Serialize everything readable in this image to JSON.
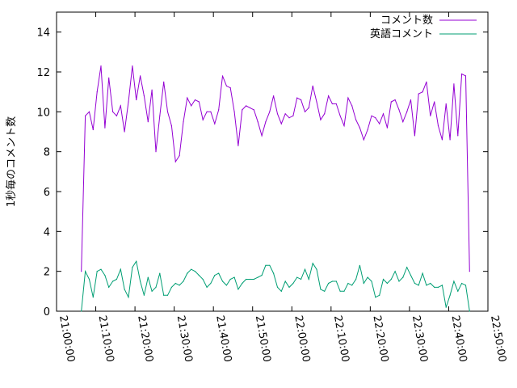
{
  "chart_data": {
    "type": "line",
    "xlabel": "",
    "ylabel": "1秒毎のコメント数",
    "xlim": [
      "21:00:00",
      "22:50:00"
    ],
    "ylim": [
      0,
      15
    ],
    "x_ticks": [
      "21:00:00",
      "21:10:00",
      "21:20:00",
      "21:30:00",
      "21:40:00",
      "21:50:00",
      "22:00:00",
      "22:10:00",
      "22:20:00",
      "22:30:00",
      "22:40:00",
      "22:50:00"
    ],
    "y_ticks": [
      "0",
      "2",
      "4",
      "6",
      "8",
      "10",
      "12",
      "14"
    ],
    "legend_position": "top-right",
    "grid": false,
    "x": [
      "21:06:20",
      "21:07:20",
      "21:08:20",
      "21:09:20",
      "21:10:20",
      "21:11:20",
      "21:12:20",
      "21:13:20",
      "21:14:20",
      "21:15:20",
      "21:16:20",
      "21:17:20",
      "21:18:20",
      "21:19:20",
      "21:20:20",
      "21:21:20",
      "21:22:20",
      "21:23:20",
      "21:24:20",
      "21:25:20",
      "21:26:20",
      "21:27:20",
      "21:28:20",
      "21:29:20",
      "21:30:20",
      "21:31:20",
      "21:32:20",
      "21:33:20",
      "21:34:20",
      "21:35:20",
      "21:36:20",
      "21:37:20",
      "21:38:20",
      "21:39:20",
      "21:40:20",
      "21:41:20",
      "21:42:20",
      "21:43:20",
      "21:44:20",
      "21:45:20",
      "21:46:20",
      "21:47:20",
      "21:48:20",
      "21:49:20",
      "21:50:20",
      "21:51:20",
      "21:52:20",
      "21:53:20",
      "21:54:20",
      "21:55:20",
      "21:56:20",
      "21:57:20",
      "21:58:20",
      "21:59:20",
      "22:00:20",
      "22:01:20",
      "22:02:20",
      "22:03:20",
      "22:04:20",
      "22:05:20",
      "22:06:20",
      "22:07:20",
      "22:08:20",
      "22:09:20",
      "22:10:20",
      "22:11:20",
      "22:12:20",
      "22:13:20",
      "22:14:20",
      "22:15:20",
      "22:16:20",
      "22:17:20",
      "22:18:20",
      "22:19:20",
      "22:20:20",
      "22:21:20",
      "22:22:20",
      "22:23:20",
      "22:24:20",
      "22:25:20",
      "22:26:20",
      "22:27:20",
      "22:28:20",
      "22:29:20",
      "22:30:20",
      "22:31:20",
      "22:32:20",
      "22:33:20",
      "22:34:20",
      "22:35:20",
      "22:36:20",
      "22:37:20",
      "22:38:20",
      "22:39:20",
      "22:40:20",
      "22:41:20",
      "22:42:20",
      "22:43:20",
      "22:44:20",
      "22:45:20"
    ],
    "series": [
      {
        "name": "コメント数",
        "color": "#9400d3",
        "values": [
          2.0,
          9.8,
          10.0,
          9.1,
          11.0,
          12.3,
          9.2,
          11.7,
          10.0,
          9.8,
          10.3,
          9.0,
          10.5,
          12.3,
          10.6,
          11.8,
          10.8,
          9.5,
          11.1,
          8.0,
          9.8,
          11.5,
          10.0,
          9.3,
          7.5,
          7.8,
          9.5,
          10.7,
          10.3,
          10.6,
          10.5,
          9.6,
          10.0,
          10.0,
          9.4,
          10.1,
          11.8,
          11.3,
          11.2,
          10.0,
          8.3,
          10.1,
          10.3,
          10.2,
          10.1,
          9.5,
          8.8,
          9.5,
          10.0,
          10.8,
          9.9,
          9.4,
          9.9,
          9.7,
          9.8,
          10.7,
          10.6,
          10.0,
          10.2,
          11.3,
          10.5,
          9.6,
          9.9,
          10.8,
          10.4,
          10.4,
          9.8,
          9.3,
          10.7,
          10.3,
          9.6,
          9.2,
          8.6,
          9.1,
          9.8,
          9.7,
          9.4,
          9.9,
          9.2,
          10.5,
          10.6,
          10.1,
          9.5,
          10.0,
          10.6,
          8.8,
          10.9,
          11.0,
          11.5,
          9.8,
          10.5,
          9.3,
          8.6,
          10.4,
          8.6,
          11.4,
          8.8,
          11.9,
          11.8,
          2.0
        ]
      },
      {
        "name": "英語コメント",
        "color": "#009e73",
        "values": [
          0.0,
          2.0,
          1.6,
          0.7,
          2.0,
          2.1,
          1.8,
          1.2,
          1.5,
          1.6,
          2.1,
          1.1,
          0.7,
          2.2,
          2.5,
          1.5,
          0.8,
          1.7,
          1.0,
          1.2,
          1.9,
          0.8,
          0.8,
          1.2,
          1.4,
          1.3,
          1.5,
          1.9,
          2.1,
          2.0,
          1.8,
          1.6,
          1.2,
          1.4,
          1.8,
          1.9,
          1.5,
          1.3,
          1.6,
          1.7,
          1.1,
          1.4,
          1.6,
          1.6,
          1.6,
          1.7,
          1.8,
          2.3,
          2.3,
          1.9,
          1.2,
          1.0,
          1.5,
          1.2,
          1.4,
          1.7,
          1.6,
          2.1,
          1.6,
          2.4,
          2.1,
          1.1,
          1.0,
          1.4,
          1.5,
          1.5,
          1.0,
          1.0,
          1.4,
          1.3,
          1.6,
          2.3,
          1.4,
          1.7,
          1.5,
          0.7,
          0.8,
          1.6,
          1.4,
          1.6,
          2.0,
          1.5,
          1.7,
          2.2,
          1.8,
          1.4,
          1.3,
          1.9,
          1.3,
          1.4,
          1.2,
          1.2,
          1.3,
          0.2,
          0.8,
          1.5,
          1.0,
          1.4,
          1.3,
          0.0
        ]
      }
    ]
  }
}
